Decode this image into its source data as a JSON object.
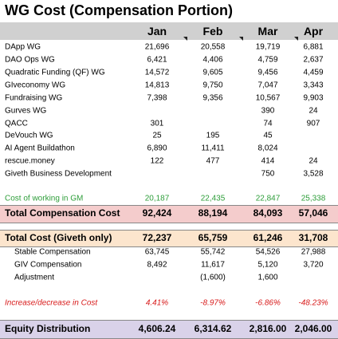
{
  "title": "WG Cost (Compensation Portion)",
  "table": {
    "columns": [
      "Jan",
      "Feb",
      "Mar",
      "Apr"
    ],
    "rows": [
      {
        "label": "DApp WG",
        "cells": [
          "21,696",
          "20,558",
          "19,719",
          "6,881"
        ]
      },
      {
        "label": "DAO Ops WG",
        "cells": [
          "6,421",
          "4,406",
          "4,759",
          "2,637"
        ]
      },
      {
        "label": "Quadratic Funding (QF) WG",
        "cells": [
          "14,572",
          "9,605",
          "9,456",
          "4,459"
        ]
      },
      {
        "label": "GIveconomy WG",
        "cells": [
          "14,813",
          "9,750",
          "7,047",
          "3,343"
        ]
      },
      {
        "label": "Fundraising WG",
        "cells": [
          "7,398",
          "9,356",
          "10,567",
          "9,903"
        ]
      },
      {
        "label": "Gurves WG",
        "cells": [
          null,
          null,
          "390",
          "24"
        ]
      },
      {
        "label": "QACC",
        "cells": [
          "301",
          null,
          "74",
          "907"
        ]
      },
      {
        "label": "DeVouch WG",
        "cells": [
          "25",
          "195",
          "45",
          null
        ]
      },
      {
        "label": "AI Agent Buildathon",
        "cells": [
          "6,890",
          "11,411",
          "8,024",
          null
        ]
      },
      {
        "label": "rescue.money",
        "cells": [
          "122",
          "477",
          "414",
          "24"
        ]
      },
      {
        "label": "Giveth Business Development",
        "cells": [
          null,
          null,
          "750",
          "3,528"
        ]
      },
      {
        "label": "Cost of working in GM",
        "cells": [
          "20,187",
          "22,435",
          "22,847",
          "25,338"
        ]
      },
      {
        "label": "Total Compensation Cost",
        "cells": [
          "92,424",
          "88,194",
          "84,093",
          "57,046"
        ]
      },
      {
        "label": "Total Cost (Giveth only)",
        "cells": [
          "72,237",
          "65,759",
          "61,246",
          "31,708"
        ]
      },
      {
        "label": "Stable Compensation",
        "cells": [
          "63,745",
          "55,742",
          "54,526",
          "27,988"
        ]
      },
      {
        "label": "GIV Compensation",
        "cells": [
          "8,492",
          "11,617",
          "5,120",
          "3,720"
        ]
      },
      {
        "label": "Adjustment",
        "cells": [
          null,
          "(1,600)",
          "1,600",
          null
        ]
      },
      {
        "label": "Increase/decrease in Cost",
        "cells": [
          "4.41%",
          "-8.97%",
          "-6.86%",
          "-48.23%"
        ]
      },
      {
        "label": "Equity Distribution",
        "cells": [
          "4,606.24",
          "6,314.62",
          "2,816.00",
          "2,046.00"
        ]
      }
    ]
  }
}
